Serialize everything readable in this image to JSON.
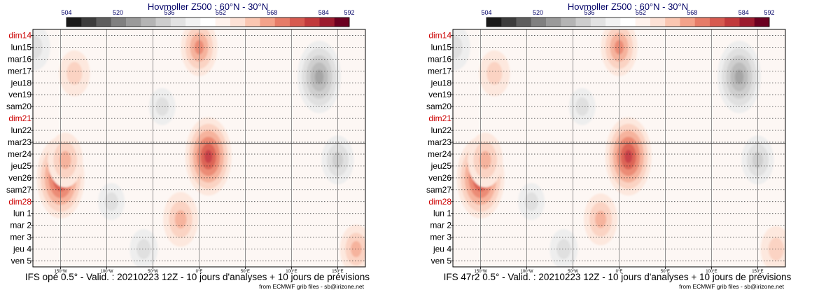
{
  "colors": {
    "red_day": "#cc0000",
    "black_day": "#000000",
    "title": "#000066",
    "axis": "#000000",
    "colorbar": [
      "#1a1a1a",
      "#3c3c3c",
      "#5e5e5e",
      "#808080",
      "#9a9a9a",
      "#b4b4b4",
      "#cdcdcd",
      "#e2e2e2",
      "#f2f2f2",
      "#ffffff",
      "#fff2ec",
      "#fde1d5",
      "#fac6b1",
      "#f3a28a",
      "#e67c68",
      "#d65a50",
      "#c13a3c",
      "#9c1b2e",
      "#6b0020"
    ]
  },
  "chart_data": [
    {
      "type": "heatmap",
      "title": "Hovmoller Z500 : 60°N - 30°N",
      "caption": "IFS opé 0.5° - Valid. : 20210223 12Z - 10 jours d'analyses + 10 jours de prévisions",
      "credit": "from ECMWF grib files - sb@irizone.net",
      "colorbar_ticks": [
        "504",
        "520",
        "536",
        "552",
        "568",
        "584",
        "592"
      ],
      "xlim": [
        -180,
        180
      ],
      "x_ticks": [
        {
          "value": -150,
          "label": "150°W"
        },
        {
          "value": -100,
          "label": "100°W"
        },
        {
          "value": -50,
          "label": "50°W"
        },
        {
          "value": 0,
          "label": "0°E"
        },
        {
          "value": 50,
          "label": "50°E"
        },
        {
          "value": 100,
          "label": "100°E"
        },
        {
          "value": 150,
          "label": "150°E"
        }
      ],
      "y_days": [
        {
          "label": "dim14",
          "red": true
        },
        {
          "label": "lun15",
          "red": false
        },
        {
          "label": "mar16",
          "red": false
        },
        {
          "label": "mer17",
          "red": false
        },
        {
          "label": "jeu18",
          "red": false
        },
        {
          "label": "ven19",
          "red": false
        },
        {
          "label": "sam20",
          "red": false
        },
        {
          "label": "dim21",
          "red": true
        },
        {
          "label": "lun22",
          "red": false
        },
        {
          "label": "mar23",
          "red": false
        },
        {
          "label": "mer24",
          "red": false
        },
        {
          "label": "jeu25",
          "red": false
        },
        {
          "label": "ven26",
          "red": false
        },
        {
          "label": "sam27",
          "red": false
        },
        {
          "label": "dim28",
          "red": true
        },
        {
          "label": "lun 1",
          "red": false
        },
        {
          "label": "mar 2",
          "red": false
        },
        {
          "label": "mer 3",
          "red": false
        },
        {
          "label": "jeu 4",
          "red": false
        },
        {
          "label": "ven 5",
          "red": false
        }
      ],
      "analysis_boundary_day_index": 9.6,
      "features": [
        {
          "lon": -150,
          "day": 12,
          "amp": 1.0,
          "type": "high"
        },
        {
          "lon": -145,
          "day": 10.5,
          "amp": 0.55,
          "type": "high"
        },
        {
          "lon": -135,
          "day": 3.2,
          "amp": 0.4,
          "type": "high"
        },
        {
          "lon": -95,
          "day": 14.0,
          "amp": 0.25,
          "type": "low"
        },
        {
          "lon": -20,
          "day": 15.5,
          "amp": 0.55,
          "type": "high"
        },
        {
          "lon": 10,
          "day": 10.2,
          "amp": 0.95,
          "type": "high"
        },
        {
          "lon": 0,
          "day": 1.0,
          "amp": 0.6,
          "type": "high"
        },
        {
          "lon": 130,
          "day": 3.5,
          "amp": 0.85,
          "type": "low"
        },
        {
          "lon": 150,
          "day": 10.5,
          "amp": 0.45,
          "type": "low"
        },
        {
          "lon": 170,
          "day": 18.0,
          "amp": 0.45,
          "type": "high"
        },
        {
          "lon": -178,
          "day": 1.0,
          "amp": 0.4,
          "type": "low"
        },
        {
          "lon": -40,
          "day": 6.0,
          "amp": 0.25,
          "type": "low"
        },
        {
          "lon": -60,
          "day": 18.0,
          "amp": 0.3,
          "type": "low"
        }
      ]
    },
    {
      "type": "heatmap",
      "title": "Hovmoller Z500 : 60°N - 30°N",
      "caption": "IFS 47r2 0.5° - Valid. : 20210223 12Z - 10 jours d'analyses + 10 jours de prévisions",
      "credit": "from ECMWF grib files - sb@irizone.net",
      "colorbar_ticks": [
        "504",
        "520",
        "536",
        "552",
        "568",
        "584",
        "592"
      ],
      "xlim": [
        -180,
        180
      ],
      "x_ticks": [
        {
          "value": -150,
          "label": "150°W"
        },
        {
          "value": -100,
          "label": "100°W"
        },
        {
          "value": -50,
          "label": "50°W"
        },
        {
          "value": 0,
          "label": "0°E"
        },
        {
          "value": 50,
          "label": "50°E"
        },
        {
          "value": 100,
          "label": "100°E"
        },
        {
          "value": 150,
          "label": "150°E"
        }
      ],
      "y_days": [
        {
          "label": "dim14",
          "red": true
        },
        {
          "label": "lun15",
          "red": false
        },
        {
          "label": "mar16",
          "red": false
        },
        {
          "label": "mer17",
          "red": false
        },
        {
          "label": "jeu18",
          "red": false
        },
        {
          "label": "ven19",
          "red": false
        },
        {
          "label": "sam20",
          "red": false
        },
        {
          "label": "dim21",
          "red": true
        },
        {
          "label": "lun22",
          "red": false
        },
        {
          "label": "mar23",
          "red": false
        },
        {
          "label": "mer24",
          "red": false
        },
        {
          "label": "jeu25",
          "red": false
        },
        {
          "label": "ven26",
          "red": false
        },
        {
          "label": "sam27",
          "red": false
        },
        {
          "label": "dim28",
          "red": true
        },
        {
          "label": "lun 1",
          "red": false
        },
        {
          "label": "mar 2",
          "red": false
        },
        {
          "label": "mer 3",
          "red": false
        },
        {
          "label": "jeu 4",
          "red": false
        },
        {
          "label": "ven 5",
          "red": false
        }
      ],
      "analysis_boundary_day_index": 9.6,
      "features": [
        {
          "lon": -150,
          "day": 12,
          "amp": 1.0,
          "type": "high"
        },
        {
          "lon": -145,
          "day": 10.5,
          "amp": 0.55,
          "type": "high"
        },
        {
          "lon": -135,
          "day": 3.2,
          "amp": 0.4,
          "type": "high"
        },
        {
          "lon": -95,
          "day": 14.0,
          "amp": 0.25,
          "type": "low"
        },
        {
          "lon": -20,
          "day": 15.5,
          "amp": 0.5,
          "type": "high"
        },
        {
          "lon": 10,
          "day": 10.2,
          "amp": 0.95,
          "type": "high"
        },
        {
          "lon": 0,
          "day": 1.0,
          "amp": 0.6,
          "type": "high"
        },
        {
          "lon": 130,
          "day": 3.5,
          "amp": 0.85,
          "type": "low"
        },
        {
          "lon": 150,
          "day": 10.5,
          "amp": 0.45,
          "type": "low"
        },
        {
          "lon": 170,
          "day": 18.0,
          "amp": 0.4,
          "type": "high"
        },
        {
          "lon": -178,
          "day": 1.0,
          "amp": 0.4,
          "type": "low"
        },
        {
          "lon": -40,
          "day": 6.0,
          "amp": 0.25,
          "type": "low"
        },
        {
          "lon": -60,
          "day": 18.0,
          "amp": 0.3,
          "type": "low"
        }
      ]
    }
  ]
}
